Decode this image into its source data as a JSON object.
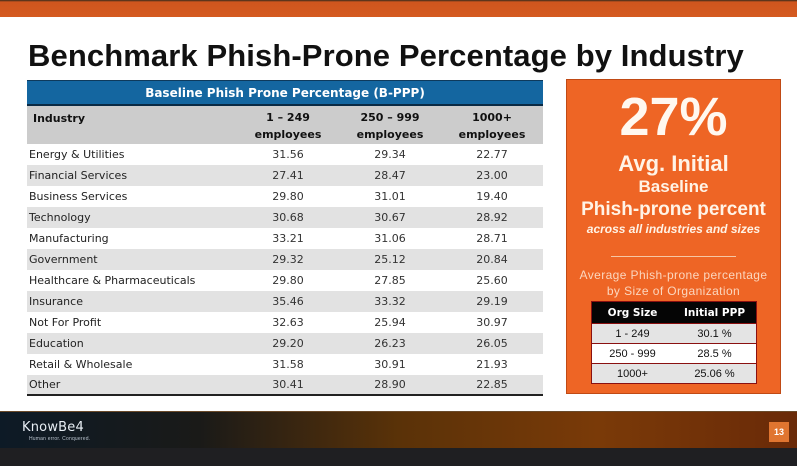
{
  "slide": {
    "title": "Benchmark Phish-Prone Percentage by Industry",
    "page_number": "13",
    "colors": {
      "accent_orange": "#ee6525",
      "table_banner_blue": "#1466a0",
      "header_gray": "#cccccc",
      "alt_row_gray": "#e2e2e2"
    }
  },
  "industry_table": {
    "banner": "Baseline Phish Prone Percentage (B-PPP)",
    "columns": [
      {
        "line1": "Industry",
        "line2": ""
      },
      {
        "line1": "1 – 249",
        "line2": "employees"
      },
      {
        "line1": "250 – 999",
        "line2": "employees"
      },
      {
        "line1": "1000+",
        "line2": "employees"
      }
    ],
    "rows": [
      {
        "industry": "Energy & Utilities",
        "small": "31.56",
        "medium": "29.34",
        "large": "22.77"
      },
      {
        "industry": "Financial Services",
        "small": "27.41",
        "medium": "28.47",
        "large": "23.00"
      },
      {
        "industry": "Business Services",
        "small": "29.80",
        "medium": "31.01",
        "large": "19.40"
      },
      {
        "industry": "Technology",
        "small": "30.68",
        "medium": "30.67",
        "large": "28.92"
      },
      {
        "industry": "Manufacturing",
        "small": "33.21",
        "medium": "31.06",
        "large": "28.71"
      },
      {
        "industry": "Government",
        "small": "29.32",
        "medium": "25.12",
        "large": "20.84"
      },
      {
        "industry": "Healthcare & Pharmaceuticals",
        "small": "29.80",
        "medium": "27.85",
        "large": "25.60"
      },
      {
        "industry": "Insurance",
        "small": "35.46",
        "medium": "33.32",
        "large": "29.19"
      },
      {
        "industry": "Not For Profit",
        "small": "32.63",
        "medium": "25.94",
        "large": "30.97"
      },
      {
        "industry": "Education",
        "small": "29.20",
        "medium": "26.23",
        "large": "26.05"
      },
      {
        "industry": "Retail & Wholesale",
        "small": "31.58",
        "medium": "30.91",
        "large": "21.93"
      },
      {
        "industry": "Other",
        "small": "30.41",
        "medium": "28.90",
        "large": "22.85"
      }
    ]
  },
  "stat_box": {
    "big_value": "27%",
    "line1": "Avg. Initial",
    "line2": "Baseline",
    "line3": "Phish-prone percent",
    "line4": "across all industries and sizes",
    "sub_caption_1": "Average Phish-prone percentage",
    "sub_caption_2": "by Size of Organization",
    "size_table": {
      "headers": [
        "Org Size",
        "Initial PPP"
      ],
      "rows": [
        {
          "size": "1 - 249",
          "ppp": "30.1 %"
        },
        {
          "size": "250 - 999",
          "ppp": "28.5 %"
        },
        {
          "size": "1000+",
          "ppp": "25.06 %"
        }
      ]
    }
  },
  "footer": {
    "logo": "KnowBe4",
    "tagline": "Human error. Conquered."
  }
}
